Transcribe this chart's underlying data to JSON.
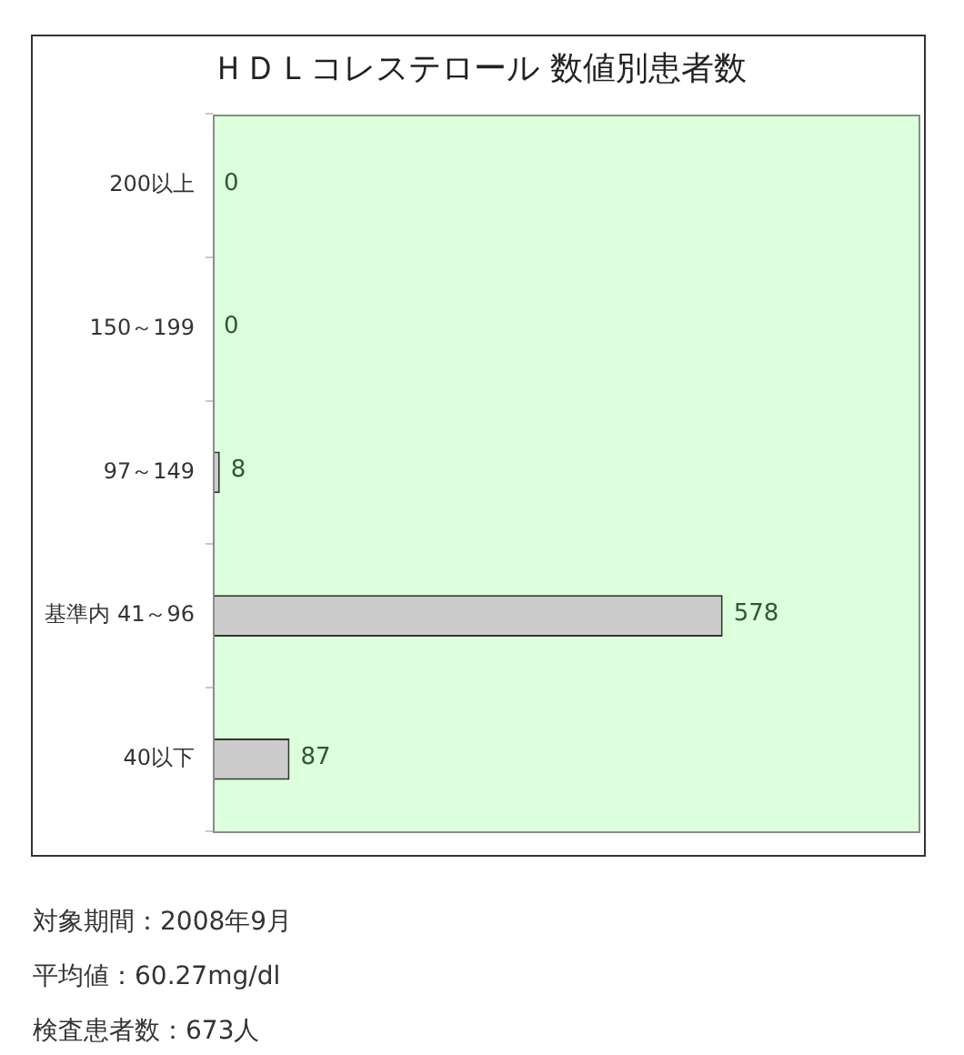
{
  "chart_data": {
    "type": "bar",
    "orientation": "horizontal",
    "title": "ＨＤＬコレステロール 数値別患者数",
    "categories": [
      "200以上",
      "150～199",
      "97～149",
      "基準内 41～96",
      "40以下"
    ],
    "values": [
      0,
      0,
      8,
      578,
      87
    ],
    "color": "#cccccc",
    "xlim": [
      0,
      800
    ],
    "data_labels": true,
    "tick_labels": "y",
    "grid": false,
    "legend": false,
    "annotations": [
      "対象期間：2008年9月",
      "平均値：60.27mg/dl",
      "検査患者数：673人"
    ]
  }
}
